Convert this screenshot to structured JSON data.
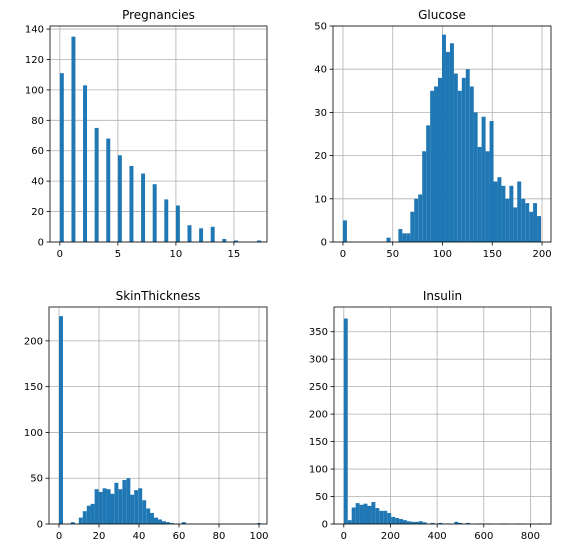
{
  "colors": {
    "bar": "#1f77b4",
    "grid": "#b0b0b0",
    "axis": "#000000"
  },
  "chart_data": [
    {
      "type": "bar",
      "title": "Pregnancies",
      "xlim": [
        -0.85,
        17.85
      ],
      "ylim": [
        0,
        142
      ],
      "xticks": [
        0,
        5,
        10,
        15
      ],
      "yticks": [
        0,
        20,
        40,
        60,
        80,
        100,
        120,
        140
      ],
      "grid": true,
      "bin_width": 0.34,
      "x": [
        0,
        1,
        2,
        3,
        4,
        5,
        6,
        7,
        8,
        9,
        10,
        11,
        12,
        13,
        14,
        15,
        17
      ],
      "values": [
        111,
        135,
        103,
        75,
        68,
        57,
        50,
        45,
        38,
        28,
        24,
        11,
        9,
        10,
        2,
        1,
        1
      ]
    },
    {
      "type": "bar",
      "title": "Glucose",
      "xlim": [
        -10,
        209
      ],
      "ylim": [
        0,
        50
      ],
      "xticks": [
        0,
        50,
        100,
        150,
        200
      ],
      "yticks": [
        0,
        10,
        20,
        30,
        40,
        50
      ],
      "grid": true,
      "bin_width": 3.98,
      "x": [
        0,
        43.8,
        55.7,
        59.7,
        63.7,
        67.7,
        71.6,
        75.6,
        79.6,
        83.6,
        87.6,
        91.5,
        95.5,
        99.5,
        103.5,
        107.5,
        111.4,
        115.4,
        119.4,
        123.4,
        127.4,
        131.3,
        135.3,
        139.3,
        143.3,
        147.3,
        151.2,
        155.2,
        159.2,
        163.2,
        167.2,
        171.1,
        175.1,
        179.1,
        183.1,
        187.1,
        191.0,
        195.0
      ],
      "values": [
        5,
        1,
        3,
        2,
        2,
        7,
        10,
        11,
        21,
        27,
        35,
        36,
        38,
        48,
        44,
        46,
        39,
        35,
        38,
        40,
        36,
        30,
        22,
        29,
        21,
        28,
        14,
        15,
        13,
        10,
        13,
        8,
        14,
        10,
        9,
        7,
        9,
        6
      ]
    },
    {
      "type": "bar",
      "title": "SkinThickness",
      "xlim": [
        -5,
        104
      ],
      "ylim": [
        0,
        237
      ],
      "xticks": [
        0,
        20,
        40,
        60,
        80,
        100
      ],
      "yticks": [
        0,
        50,
        100,
        150,
        200
      ],
      "grid": true,
      "bin_width": 1.98,
      "x": [
        0,
        5.9,
        9.9,
        11.9,
        13.9,
        15.8,
        17.8,
        19.8,
        21.8,
        23.8,
        25.7,
        27.7,
        29.7,
        31.7,
        33.7,
        35.6,
        37.6,
        39.6,
        41.6,
        43.6,
        45.5,
        47.5,
        49.5,
        51.5,
        53.5,
        55.4,
        61.4,
        99.0
      ],
      "values": [
        227,
        2,
        7,
        14,
        20,
        22,
        38,
        35,
        39,
        38,
        33,
        45,
        38,
        48,
        50,
        32,
        37,
        39,
        26,
        17,
        12,
        7,
        5,
        3,
        2,
        1,
        2,
        1
      ]
    },
    {
      "type": "bar",
      "title": "Insulin",
      "xlim": [
        -42,
        888
      ],
      "ylim": [
        0,
        395
      ],
      "xticks": [
        0,
        200,
        400,
        600,
        800
      ],
      "yticks": [
        0,
        50,
        100,
        150,
        200,
        250,
        300,
        350
      ],
      "grid": true,
      "bin_width": 16.9,
      "x": [
        0,
        16.9,
        33.8,
        50.8,
        67.7,
        84.6,
        101.5,
        118.4,
        135.4,
        152.3,
        169.2,
        186.1,
        203.0,
        220.0,
        236.9,
        253.8,
        270.7,
        287.6,
        304.6,
        321.5,
        338.4,
        372.2,
        406.1,
        440.0,
        473.8,
        490.7,
        524.6,
        575.3,
        609.2,
        677.0,
        744.7,
        829.3
      ],
      "values": [
        374,
        7,
        30,
        38,
        35,
        37,
        33,
        40,
        29,
        24,
        24,
        20,
        13,
        11,
        9,
        7,
        5,
        4,
        4,
        5,
        3,
        2,
        2,
        1,
        4,
        2,
        2,
        1,
        1,
        1,
        1,
        1
      ]
    }
  ]
}
